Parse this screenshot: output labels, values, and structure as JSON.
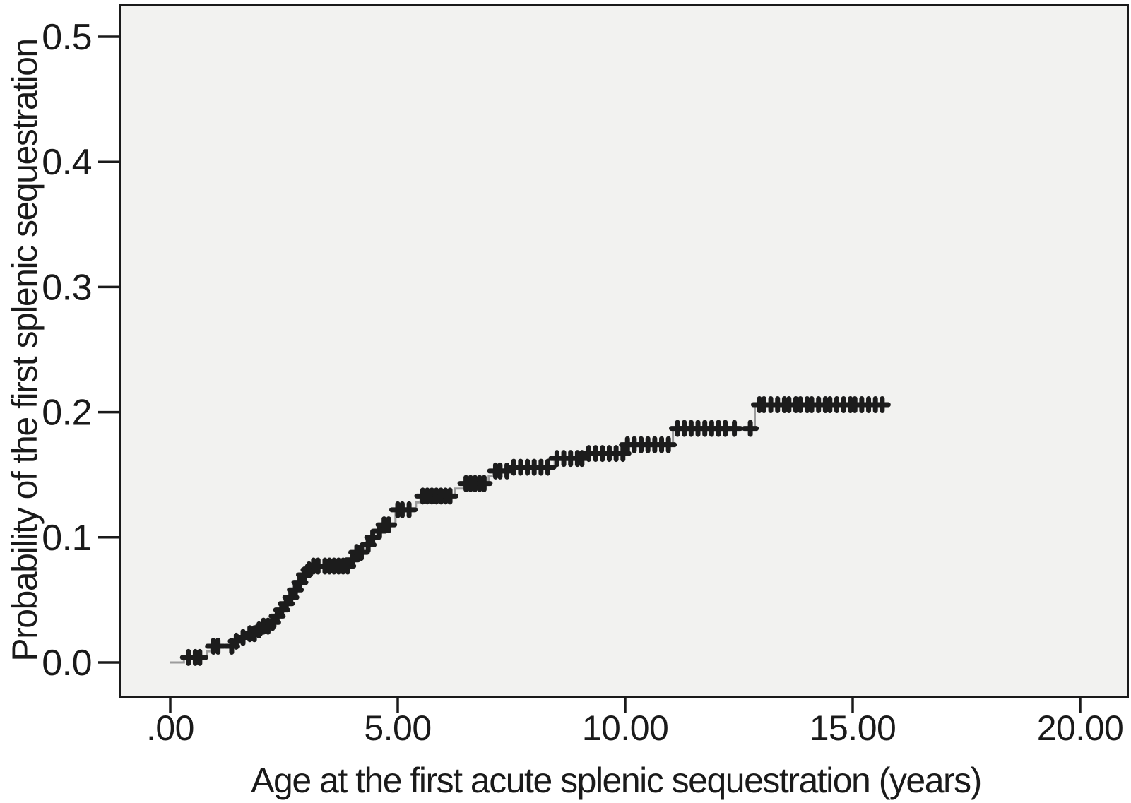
{
  "figure": {
    "background_color": "#ffffff",
    "plot_background_color": "#f2f2f0",
    "frame_color": "#1a1a1a",
    "line_color": "#9c9c9c",
    "marker_color": "#1c1c1c",
    "marker_glyph": "plus-censor-mark"
  },
  "chart_data": {
    "type": "line",
    "subtype": "kaplan-meier-step-cumulative-incidence",
    "title": "",
    "xlabel": "Age at the first acute splenic sequestration (years)",
    "ylabel": "Probability of the first splenic sequestration",
    "xlim": [
      -1.13,
      21.06
    ],
    "ylim": [
      -0.028,
      0.527
    ],
    "grid": false,
    "legend": "none",
    "x_ticks": [
      0,
      5,
      10,
      15,
      20
    ],
    "x_tick_labels": [
      ".00",
      "5.00",
      "10.00",
      "15.00",
      "20.00"
    ],
    "y_ticks": [
      0.0,
      0.1,
      0.2,
      0.3,
      0.4,
      0.5
    ],
    "y_tick_labels": [
      "0.0",
      "0.1",
      "0.2",
      "0.3",
      "0.4",
      "0.5"
    ],
    "curve_start_age": 0.0,
    "curve_end_age": 15.7,
    "final_probability": 0.206,
    "steps": [
      [
        0.0,
        0.0
      ],
      [
        0.3,
        0.004
      ],
      [
        0.8,
        0.009
      ],
      [
        0.9,
        0.013
      ],
      [
        1.4,
        0.017
      ],
      [
        1.55,
        0.02
      ],
      [
        1.7,
        0.023
      ],
      [
        1.9,
        0.026
      ],
      [
        2.05,
        0.029
      ],
      [
        2.2,
        0.032
      ],
      [
        2.35,
        0.037
      ],
      [
        2.45,
        0.042
      ],
      [
        2.55,
        0.047
      ],
      [
        2.65,
        0.052
      ],
      [
        2.75,
        0.058
      ],
      [
        2.85,
        0.064
      ],
      [
        2.95,
        0.07
      ],
      [
        3.05,
        0.074
      ],
      [
        3.15,
        0.077
      ],
      [
        3.95,
        0.082
      ],
      [
        4.1,
        0.088
      ],
      [
        4.25,
        0.094
      ],
      [
        4.4,
        0.1
      ],
      [
        4.55,
        0.105
      ],
      [
        4.7,
        0.11
      ],
      [
        4.95,
        0.122
      ],
      [
        5.4,
        0.128
      ],
      [
        5.5,
        0.133
      ],
      [
        6.25,
        0.139
      ],
      [
        6.45,
        0.143
      ],
      [
        7.0,
        0.149
      ],
      [
        7.1,
        0.153
      ],
      [
        7.5,
        0.156
      ],
      [
        8.45,
        0.163
      ],
      [
        9.15,
        0.167
      ],
      [
        10.0,
        0.174
      ],
      [
        11.05,
        0.187
      ],
      [
        12.85,
        0.206
      ],
      [
        15.7,
        0.206
      ]
    ],
    "censor_marks": [
      0.4,
      0.55,
      0.65,
      0.95,
      1.05,
      1.35,
      1.45,
      1.6,
      1.75,
      1.85,
      1.95,
      2.05,
      2.15,
      2.25,
      2.35,
      2.45,
      2.55,
      2.65,
      2.75,
      2.85,
      2.95,
      3.05,
      3.15,
      3.25,
      3.4,
      3.5,
      3.6,
      3.7,
      3.8,
      3.9,
      4.0,
      4.1,
      4.2,
      4.35,
      4.45,
      4.6,
      4.7,
      4.8,
      5.0,
      5.1,
      5.25,
      5.55,
      5.65,
      5.75,
      5.85,
      5.95,
      6.05,
      6.15,
      6.5,
      6.6,
      6.7,
      6.8,
      6.9,
      7.15,
      7.25,
      7.4,
      7.55,
      7.7,
      7.85,
      8.0,
      8.15,
      8.3,
      8.5,
      8.65,
      8.8,
      8.95,
      9.05,
      9.2,
      9.35,
      9.5,
      9.65,
      9.8,
      9.95,
      10.05,
      10.2,
      10.35,
      10.5,
      10.65,
      10.8,
      10.95,
      11.15,
      11.3,
      11.45,
      11.6,
      11.75,
      11.9,
      12.05,
      12.2,
      12.4,
      12.75,
      12.95,
      13.05,
      13.2,
      13.35,
      13.5,
      13.6,
      13.75,
      13.85,
      14.0,
      14.1,
      14.25,
      14.4,
      14.5,
      14.65,
      14.8,
      14.95,
      15.05,
      15.2,
      15.35,
      15.5,
      15.65
    ]
  }
}
